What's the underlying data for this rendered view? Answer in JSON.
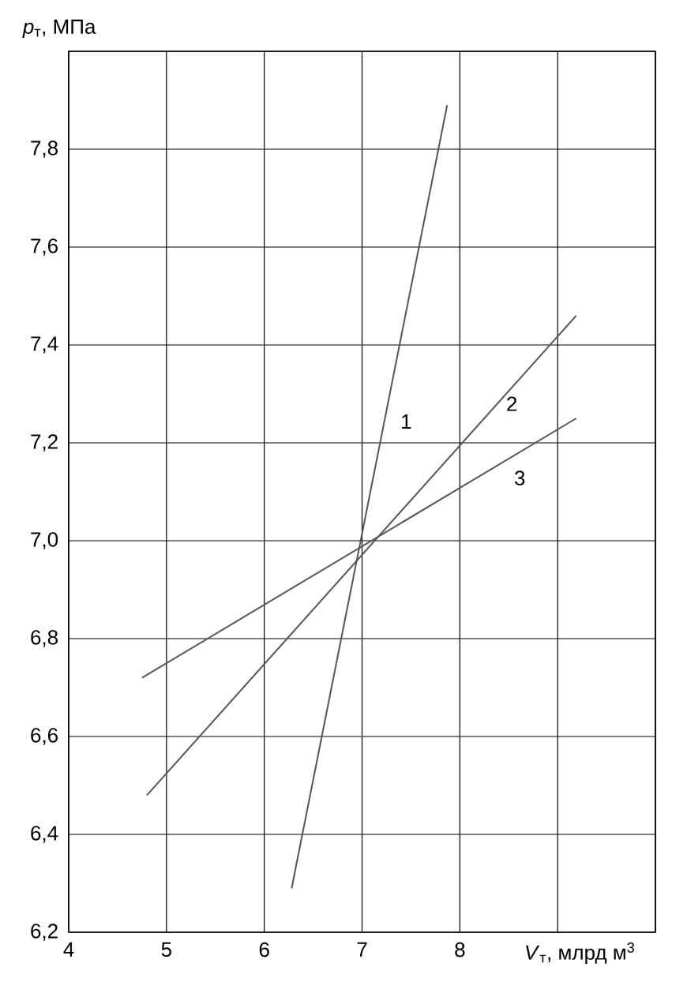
{
  "chart_data": {
    "type": "line",
    "xlabel": "*V*$_{т}$, млрд м$^{3}$",
    "ylabel": "*p*$_{т}$, МПа",
    "xlim": [
      4,
      10
    ],
    "ylim": [
      6.2,
      8.0
    ],
    "xticks": [
      4,
      5,
      6,
      7,
      8,
      {
        "value": 9,
        "label": null
      },
      {
        "value": 10,
        "label": null
      }
    ],
    "yticks": [
      {
        "value": 6.2,
        "label": "6,2"
      },
      {
        "value": 6.4,
        "label": "6,4"
      },
      {
        "value": 6.6,
        "label": "6,6"
      },
      {
        "value": 6.8,
        "label": "6,8"
      },
      {
        "value": 7.0,
        "label": "7,0"
      },
      {
        "value": 7.2,
        "label": "7,2"
      },
      {
        "value": 7.4,
        "label": "7,4"
      },
      {
        "value": 7.6,
        "label": "7,6"
      },
      {
        "value": 7.8,
        "label": "7,8"
      },
      {
        "value": 8.0,
        "label": null
      }
    ],
    "grid": true,
    "marker": "none",
    "line_style": "solid",
    "series": [
      {
        "name": "1",
        "color": "#555555",
        "x": [
          6.28,
          7.87
        ],
        "values": [
          6.29,
          7.89
        ]
      },
      {
        "name": "2",
        "color": "#555555",
        "x": [
          4.8,
          9.19
        ],
        "values": [
          6.48,
          7.46
        ]
      },
      {
        "name": "3",
        "color": "#555555",
        "x": [
          4.75,
          9.19
        ],
        "values": [
          6.72,
          7.25
        ]
      }
    ]
  }
}
